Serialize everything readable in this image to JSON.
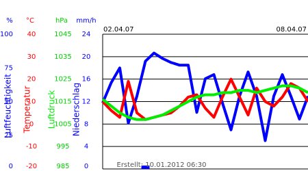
{
  "chart_data": {
    "type": "line",
    "date_start": "02.04.07",
    "date_end": "08.04.07",
    "footer": "Erstellt: 10.01.2012 06:30",
    "x": [
      0,
      6,
      12,
      18,
      24,
      30,
      36,
      42,
      48,
      54,
      60,
      66,
      72,
      78,
      84,
      90,
      96,
      102,
      108,
      114,
      120,
      126,
      132,
      138,
      144
    ],
    "xlim": [
      0,
      144
    ],
    "grid": true,
    "axes": [
      {
        "unit": "%",
        "color": "#0000ff",
        "lim": [
          0,
          100
        ],
        "ticks": [
          0,
          25,
          50,
          75,
          100
        ]
      },
      {
        "unit": "°C",
        "color": "#ff0000",
        "lim": [
          -20,
          40
        ],
        "ticks": [
          -20,
          -10,
          0,
          10,
          20,
          30,
          40
        ]
      },
      {
        "unit": "hPa",
        "color": "#00cc00",
        "lim": [
          985,
          1045
        ],
        "ticks": [
          985,
          995,
          1005,
          1015,
          1025,
          1035,
          1045
        ]
      },
      {
        "unit": "mm/h",
        "color": "#0000ff",
        "lim": [
          0,
          24
        ],
        "ticks": [
          0,
          4,
          8,
          12,
          16,
          20,
          24
        ]
      }
    ],
    "series": [
      {
        "name": "Luftfeuchtigkeit",
        "type": "line",
        "axis": 0,
        "color": "#0000ff",
        "values": [
          49,
          64,
          75,
          34,
          54,
          80,
          86,
          82,
          79,
          77,
          77,
          42,
          67,
          70,
          49,
          29,
          54,
          72,
          54,
          21,
          54,
          70,
          54,
          37,
          54
        ]
      },
      {
        "name": "Temperatur",
        "type": "line",
        "axis": 1,
        "color": "#ff0000",
        "values": [
          10,
          6,
          3,
          19,
          5,
          2,
          3,
          4,
          5,
          8,
          12,
          13,
          7,
          3,
          12,
          20,
          12,
          4,
          16,
          10,
          8,
          12,
          18,
          16,
          10
        ]
      },
      {
        "name": "Luftdruck",
        "type": "line",
        "axis": 2,
        "color": "#00ee00",
        "values": [
          1016,
          1013,
          1010,
          1008,
          1007,
          1007,
          1008,
          1009,
          1011,
          1013,
          1015,
          1017,
          1018,
          1018,
          1019,
          1019,
          1020,
          1020,
          1019,
          1020,
          1021,
          1022,
          1022,
          1021,
          1019
        ]
      },
      {
        "name": "Niederschlag",
        "type": "bar",
        "axis": 3,
        "color": "#0000ff",
        "values": [
          0,
          0,
          0,
          0,
          0,
          0.6,
          0,
          0,
          0,
          0,
          0,
          0,
          0,
          0,
          0,
          0,
          0,
          0,
          0,
          0,
          0,
          0,
          0,
          0,
          0
        ]
      }
    ]
  }
}
